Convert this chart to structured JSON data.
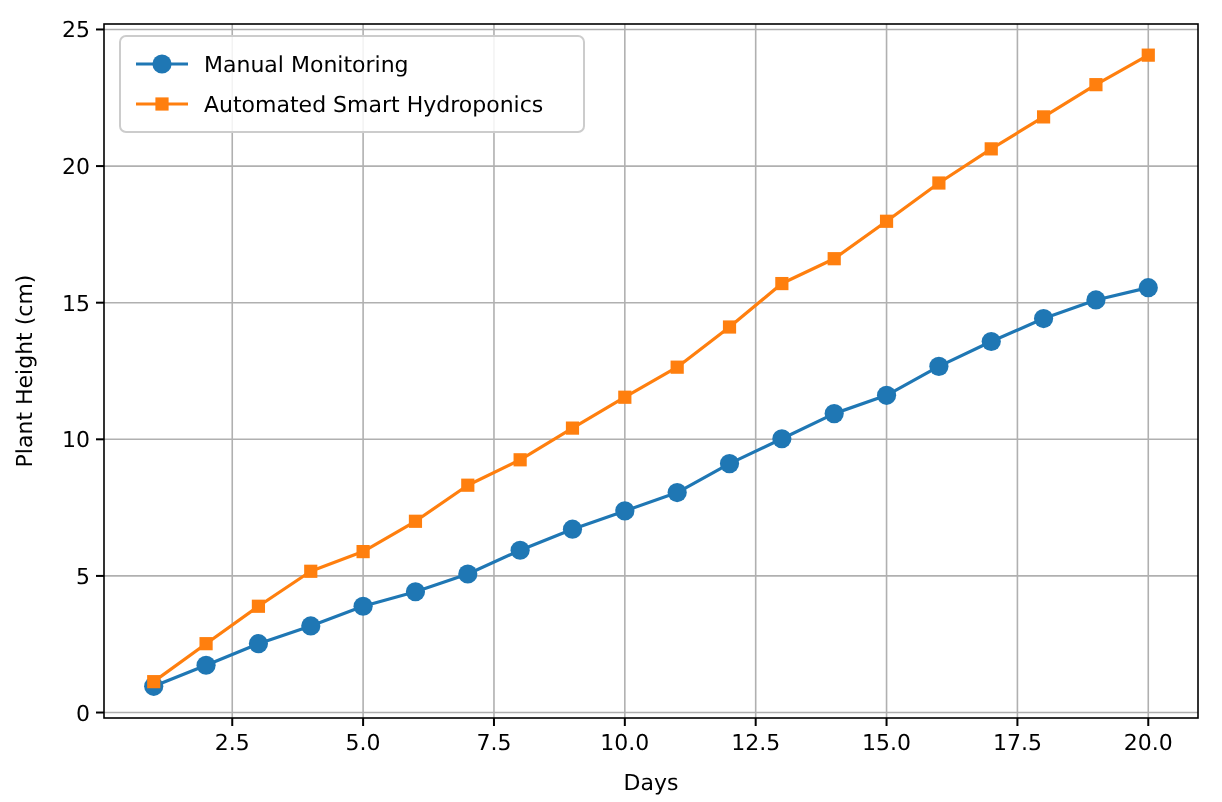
{
  "chart_data": {
    "type": "line",
    "xlabel": "Days",
    "ylabel": "Plant Height (cm)",
    "x": [
      1,
      2,
      3,
      4,
      5,
      6,
      7,
      8,
      9,
      10,
      11,
      12,
      13,
      14,
      15,
      16,
      17,
      18,
      19,
      20
    ],
    "series": [
      {
        "name": "Manual Monitoring",
        "color": "#1f77b4",
        "marker": "circle",
        "values": [
          0.96,
          1.73,
          2.52,
          3.17,
          3.89,
          4.42,
          5.07,
          5.94,
          6.71,
          7.38,
          8.05,
          9.11,
          10.02,
          10.94,
          11.61,
          12.67,
          13.58,
          14.42,
          15.1,
          15.55
        ]
      },
      {
        "name": "Automated Smart Hydroponics",
        "color": "#ff7f0e",
        "marker": "square",
        "values": [
          1.13,
          2.52,
          3.89,
          5.17,
          5.89,
          7.0,
          8.32,
          9.25,
          10.41,
          11.54,
          12.64,
          14.11,
          15.7,
          16.61,
          17.98,
          19.38,
          20.63,
          21.8,
          22.98,
          24.06
        ]
      }
    ],
    "xlim": [
      0.05,
      20.95
    ],
    "xticks": [
      {
        "value": 2.5,
        "label": "2.5"
      },
      {
        "value": 5,
        "label": "5.0"
      },
      {
        "value": 7.5,
        "label": "7.5"
      },
      {
        "value": 10,
        "label": "10.0"
      },
      {
        "value": 12.5,
        "label": "12.5"
      },
      {
        "value": 15,
        "label": "15.0"
      },
      {
        "value": 17.5,
        "label": "17.5"
      },
      {
        "value": 20,
        "label": "20.0"
      }
    ],
    "ylim": [
      -0.2,
      25.2
    ],
    "yticks": [
      0,
      5,
      10,
      15,
      20,
      25
    ],
    "grid": true,
    "legend": "top left",
    "line_style": "solid"
  }
}
